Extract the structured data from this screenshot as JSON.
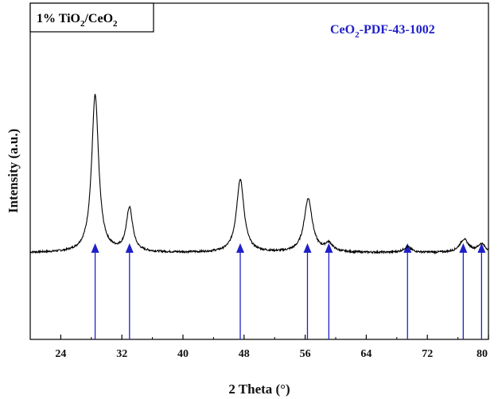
{
  "chart_data": {
    "type": "line",
    "title": "",
    "xlabel": "2 Theta (°)",
    "ylabel": "Intensity (a.u.)",
    "xlim": [
      20,
      80
    ],
    "xticks": [
      24,
      32,
      40,
      48,
      56,
      64,
      72,
      80
    ],
    "yticks_shown": false,
    "grid": false,
    "legend": {
      "sample_prefix": "1% TiO",
      "sample_sub1": "2",
      "sample_mid": "/CeO",
      "sample_sub2": "2",
      "placement": "top-left"
    },
    "reference": {
      "label_prefix": "CeO",
      "label_sub": "2",
      "label_suffix": "-PDF-43-1002",
      "color": "#2020c8",
      "positions": [
        28.5,
        33.0,
        47.5,
        56.3,
        59.1,
        69.4,
        76.7,
        79.1
      ]
    },
    "series": [
      {
        "name": "1% TiO2/CeO2",
        "color": "#000000",
        "baseline": 0.0,
        "peaks": [
          {
            "center": 28.5,
            "height": 0.97,
            "width": 0.55
          },
          {
            "center": 33.0,
            "height": 0.27,
            "width": 0.5
          },
          {
            "center": 47.5,
            "height": 0.45,
            "width": 0.6
          },
          {
            "center": 56.4,
            "height": 0.33,
            "width": 0.65
          },
          {
            "center": 59.1,
            "height": 0.05,
            "width": 0.6
          },
          {
            "center": 69.4,
            "height": 0.035,
            "width": 0.6
          },
          {
            "center": 76.8,
            "height": 0.08,
            "width": 0.7
          },
          {
            "center": 79.1,
            "height": 0.05,
            "width": 0.6
          }
        ]
      }
    ]
  }
}
